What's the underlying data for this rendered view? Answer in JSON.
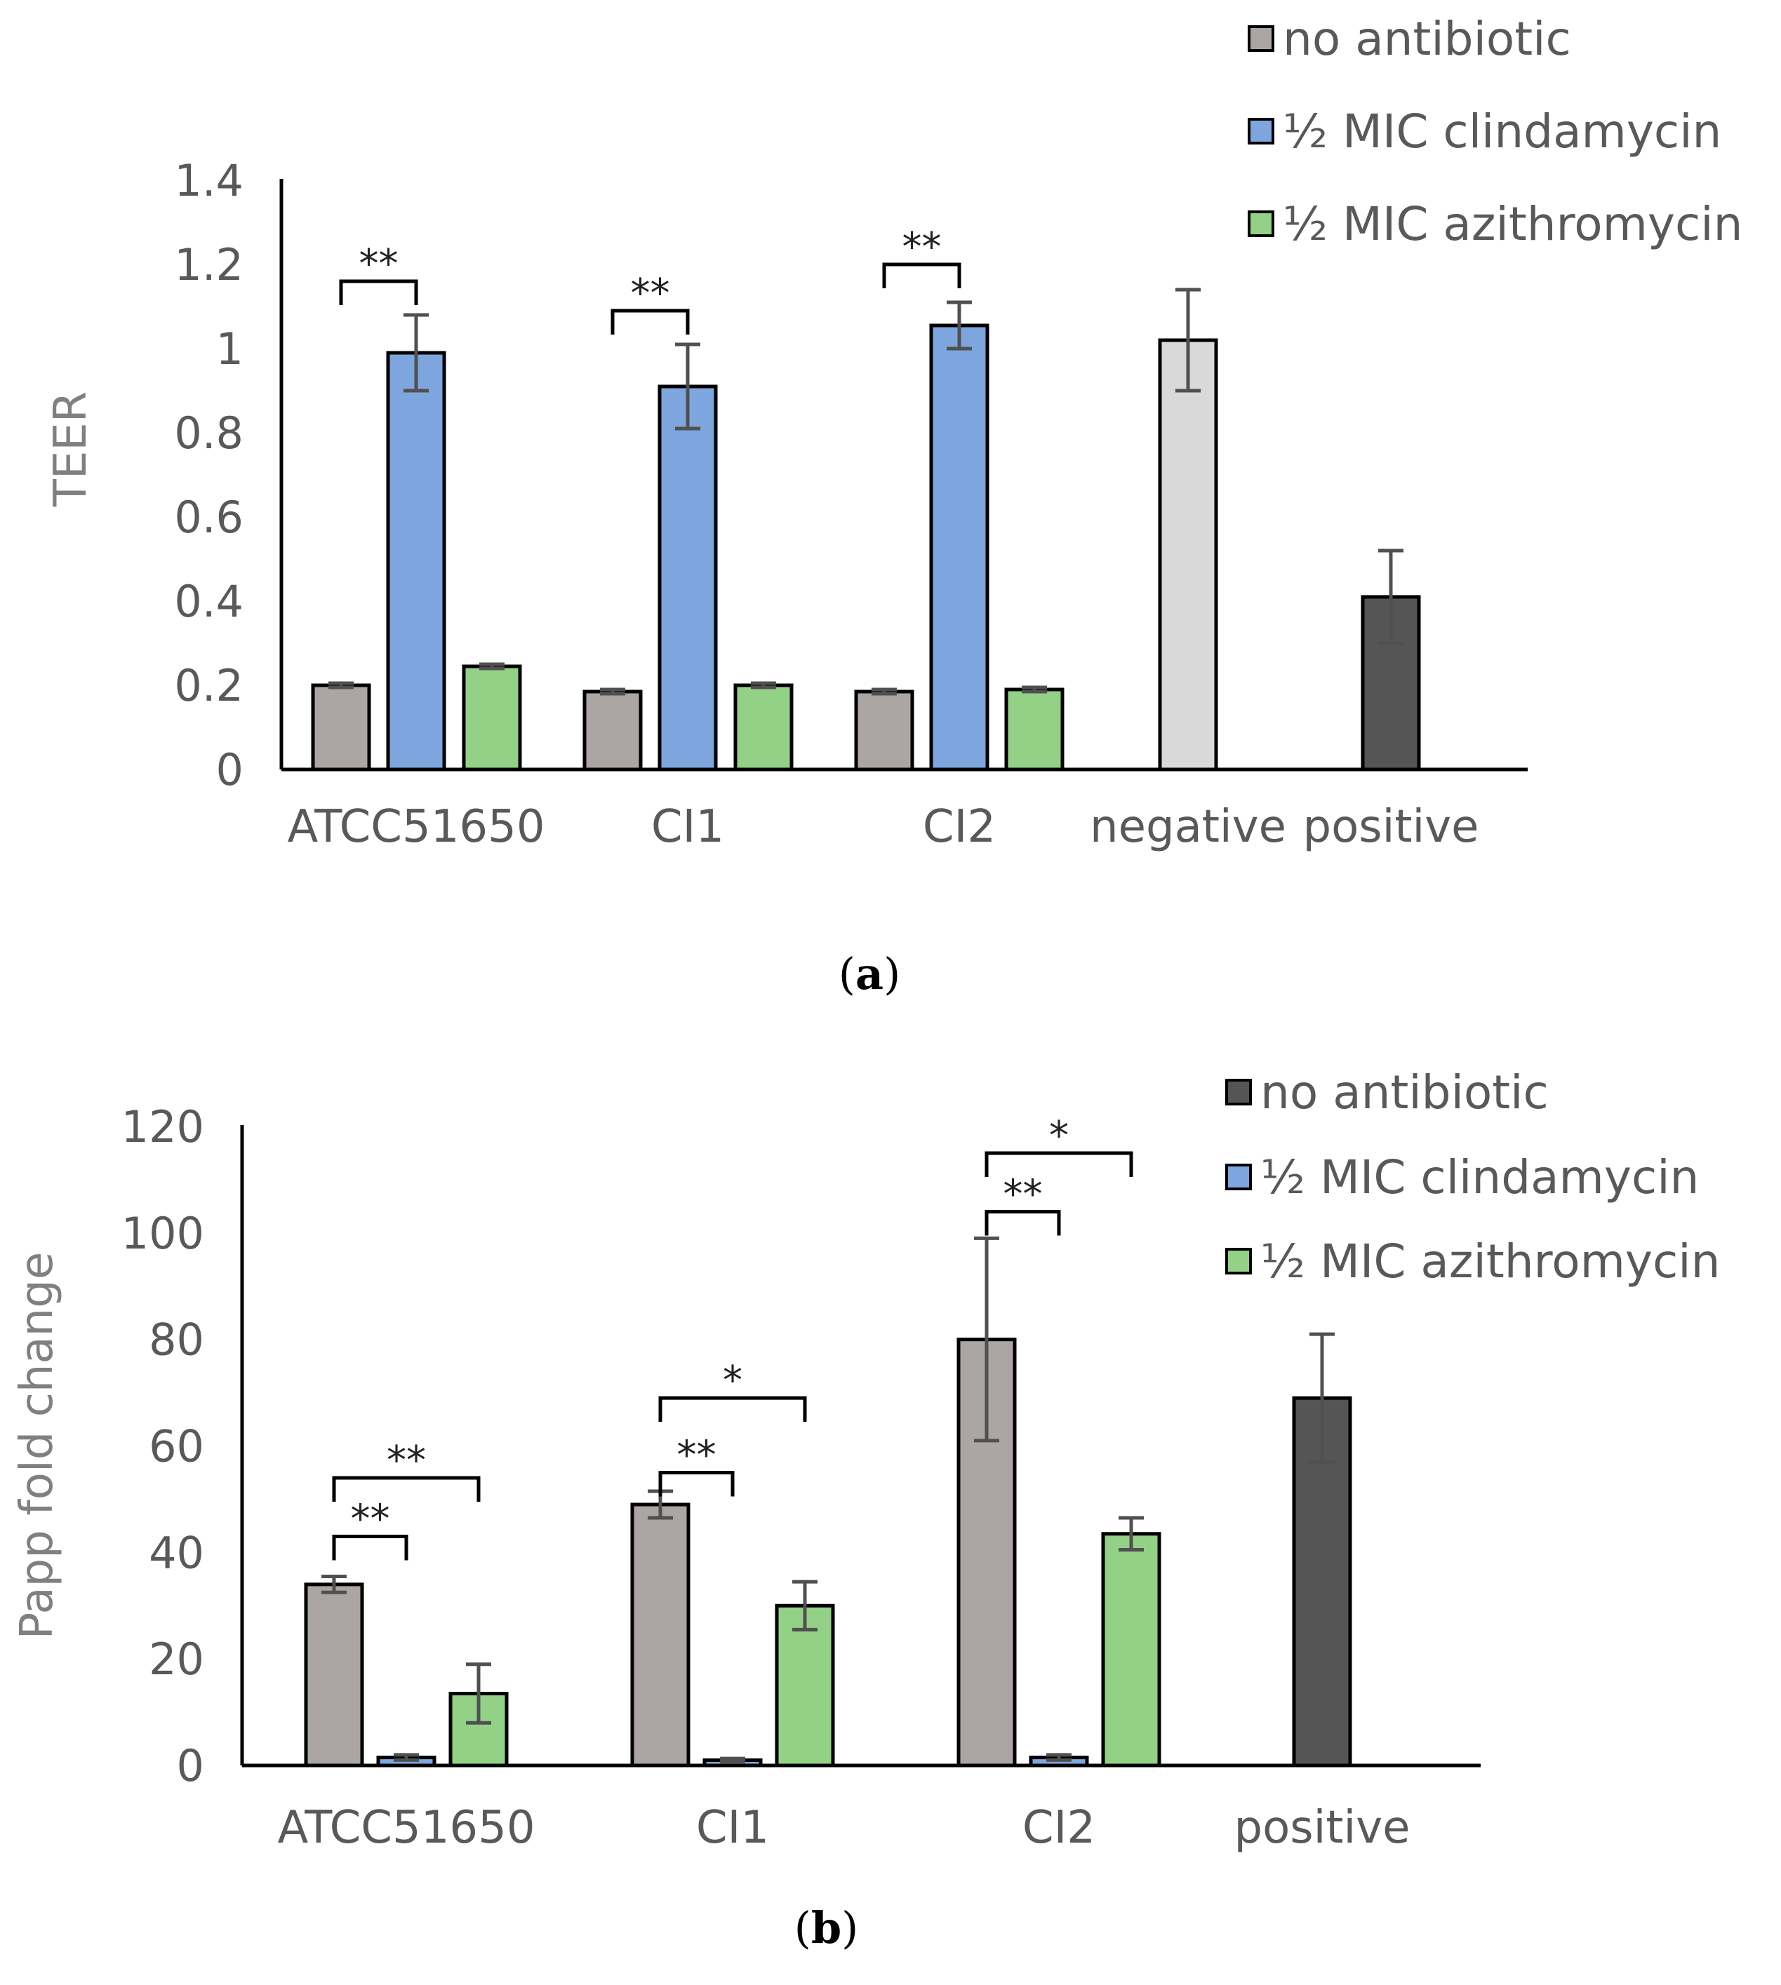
{
  "chart_data": [
    {
      "type": "bar",
      "panel_label": "a",
      "ylabel": "TEER",
      "ylim": [
        0,
        1.4
      ],
      "yticks": [
        "0",
        "0.2",
        "0.4",
        "0.6",
        "0.8",
        "1",
        "1.2",
        "1.4"
      ],
      "categories": [
        "ATCC51650",
        "CI1",
        "CI2",
        "negative",
        "positive"
      ],
      "legend": {
        "position": "top-right"
      },
      "series": [
        {
          "name": "no antibiotic",
          "color": "#aba6a4",
          "values": [
            0.2,
            0.185,
            0.185,
            null,
            null
          ],
          "errors": [
            0.005,
            0.005,
            0.005,
            null,
            null
          ]
        },
        {
          "name": "½ MIC clindamycin",
          "color": "#7ea6de",
          "values": [
            0.99,
            0.91,
            1.055,
            null,
            null
          ],
          "errors": [
            0.09,
            0.1,
            0.055,
            null,
            null
          ]
        },
        {
          "name": "½ MIC azithromycin",
          "color": "#93d187",
          "values": [
            0.245,
            0.2,
            0.19,
            null,
            null
          ],
          "errors": [
            0.005,
            0.005,
            0.005,
            null,
            null
          ]
        }
      ],
      "controls": [
        {
          "category": "negative",
          "value": 1.02,
          "error": 0.12,
          "color": "#d9d9d9"
        },
        {
          "category": "positive",
          "value": 0.41,
          "error": 0.11,
          "color": "#555555"
        }
      ],
      "annotations": [
        {
          "label": "**",
          "category": "ATCC51650",
          "from_series": 0,
          "to_series": 1,
          "y": 1.16
        },
        {
          "label": "**",
          "category": "CI1",
          "from_series": 0,
          "to_series": 1,
          "y": 1.09
        },
        {
          "label": "**",
          "category": "CI2",
          "from_series": 0,
          "to_series": 1,
          "y": 1.2
        }
      ]
    },
    {
      "type": "bar",
      "panel_label": "b",
      "ylabel": "Papp fold change",
      "ylim": [
        0,
        120
      ],
      "yticks": [
        "0",
        "20",
        "40",
        "60",
        "80",
        "100",
        "120"
      ],
      "categories": [
        "ATCC51650",
        "CI1",
        "CI2",
        "positive"
      ],
      "legend": {
        "position": "top-right"
      },
      "series": [
        {
          "name": "no antibiotic",
          "color": "#aba6a4",
          "values": [
            34,
            49,
            80,
            null
          ],
          "errors": [
            1.5,
            2.5,
            19,
            null
          ]
        },
        {
          "name": "½ MIC clindamycin",
          "color": "#7ea6de",
          "values": [
            1.5,
            1,
            1.5,
            null
          ],
          "errors": [
            0.5,
            0.3,
            0.5,
            null
          ]
        },
        {
          "name": "½ MIC azithromycin",
          "color": "#93d187",
          "values": [
            13.5,
            30,
            43.5,
            null
          ],
          "errors": [
            5.5,
            4.5,
            3,
            null
          ]
        }
      ],
      "controls": [
        {
          "category": "positive",
          "value": 69,
          "error": 12,
          "color": "#555555"
        }
      ],
      "annotations": [
        {
          "label": "**",
          "category": "ATCC51650",
          "from_series": 0,
          "to_series": 1,
          "y": 43
        },
        {
          "label": "**",
          "category": "ATCC51650",
          "from_series": 0,
          "to_series": 2,
          "y": 54
        },
        {
          "label": "**",
          "category": "CI1",
          "from_series": 0,
          "to_series": 1,
          "y": 55
        },
        {
          "label": "*",
          "category": "CI1",
          "from_series": 0,
          "to_series": 2,
          "y": 69
        },
        {
          "label": "**",
          "category": "CI2",
          "from_series": 0,
          "to_series": 1,
          "y": 104
        },
        {
          "label": "*",
          "category": "CI2",
          "from_series": 0,
          "to_series": 2,
          "y": 115
        }
      ]
    }
  ]
}
